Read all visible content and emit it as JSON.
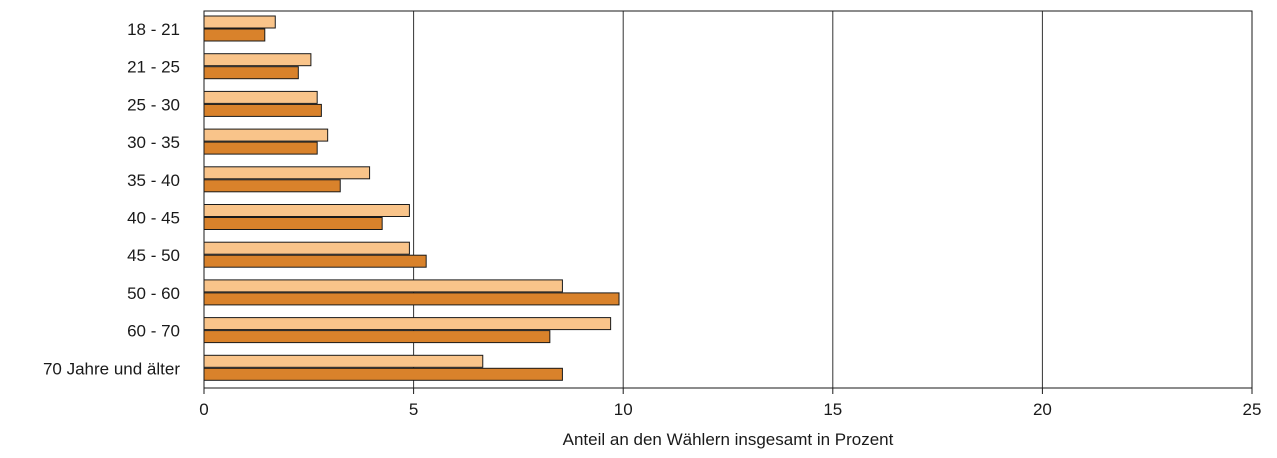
{
  "chart_data": {
    "type": "bar",
    "orientation": "horizontal",
    "categories": [
      "18 - 21",
      "21 - 25",
      "25 - 30",
      "30 - 35",
      "35 - 40",
      "40 - 45",
      "45 - 50",
      "50 - 60",
      "60 - 70",
      "70 Jahre und älter"
    ],
    "series": [
      {
        "values": [
          1.7,
          2.55,
          2.7,
          2.95,
          3.95,
          4.9,
          4.9,
          8.55,
          9.7,
          6.65
        ],
        "color": "#F9C48A"
      },
      {
        "values": [
          1.45,
          2.25,
          2.8,
          2.7,
          3.25,
          4.25,
          5.3,
          9.9,
          8.25,
          8.55
        ],
        "color": "#D9822B"
      }
    ],
    "xlabel": "Anteil an den Wählern insgesamt in Prozent",
    "ylabel": "",
    "title": "",
    "xlim": [
      0,
      25
    ],
    "xticks": [
      "0",
      "5",
      "10",
      "15",
      "20",
      "25"
    ],
    "grid": "vertical lines at major ticks",
    "legend": "none"
  }
}
